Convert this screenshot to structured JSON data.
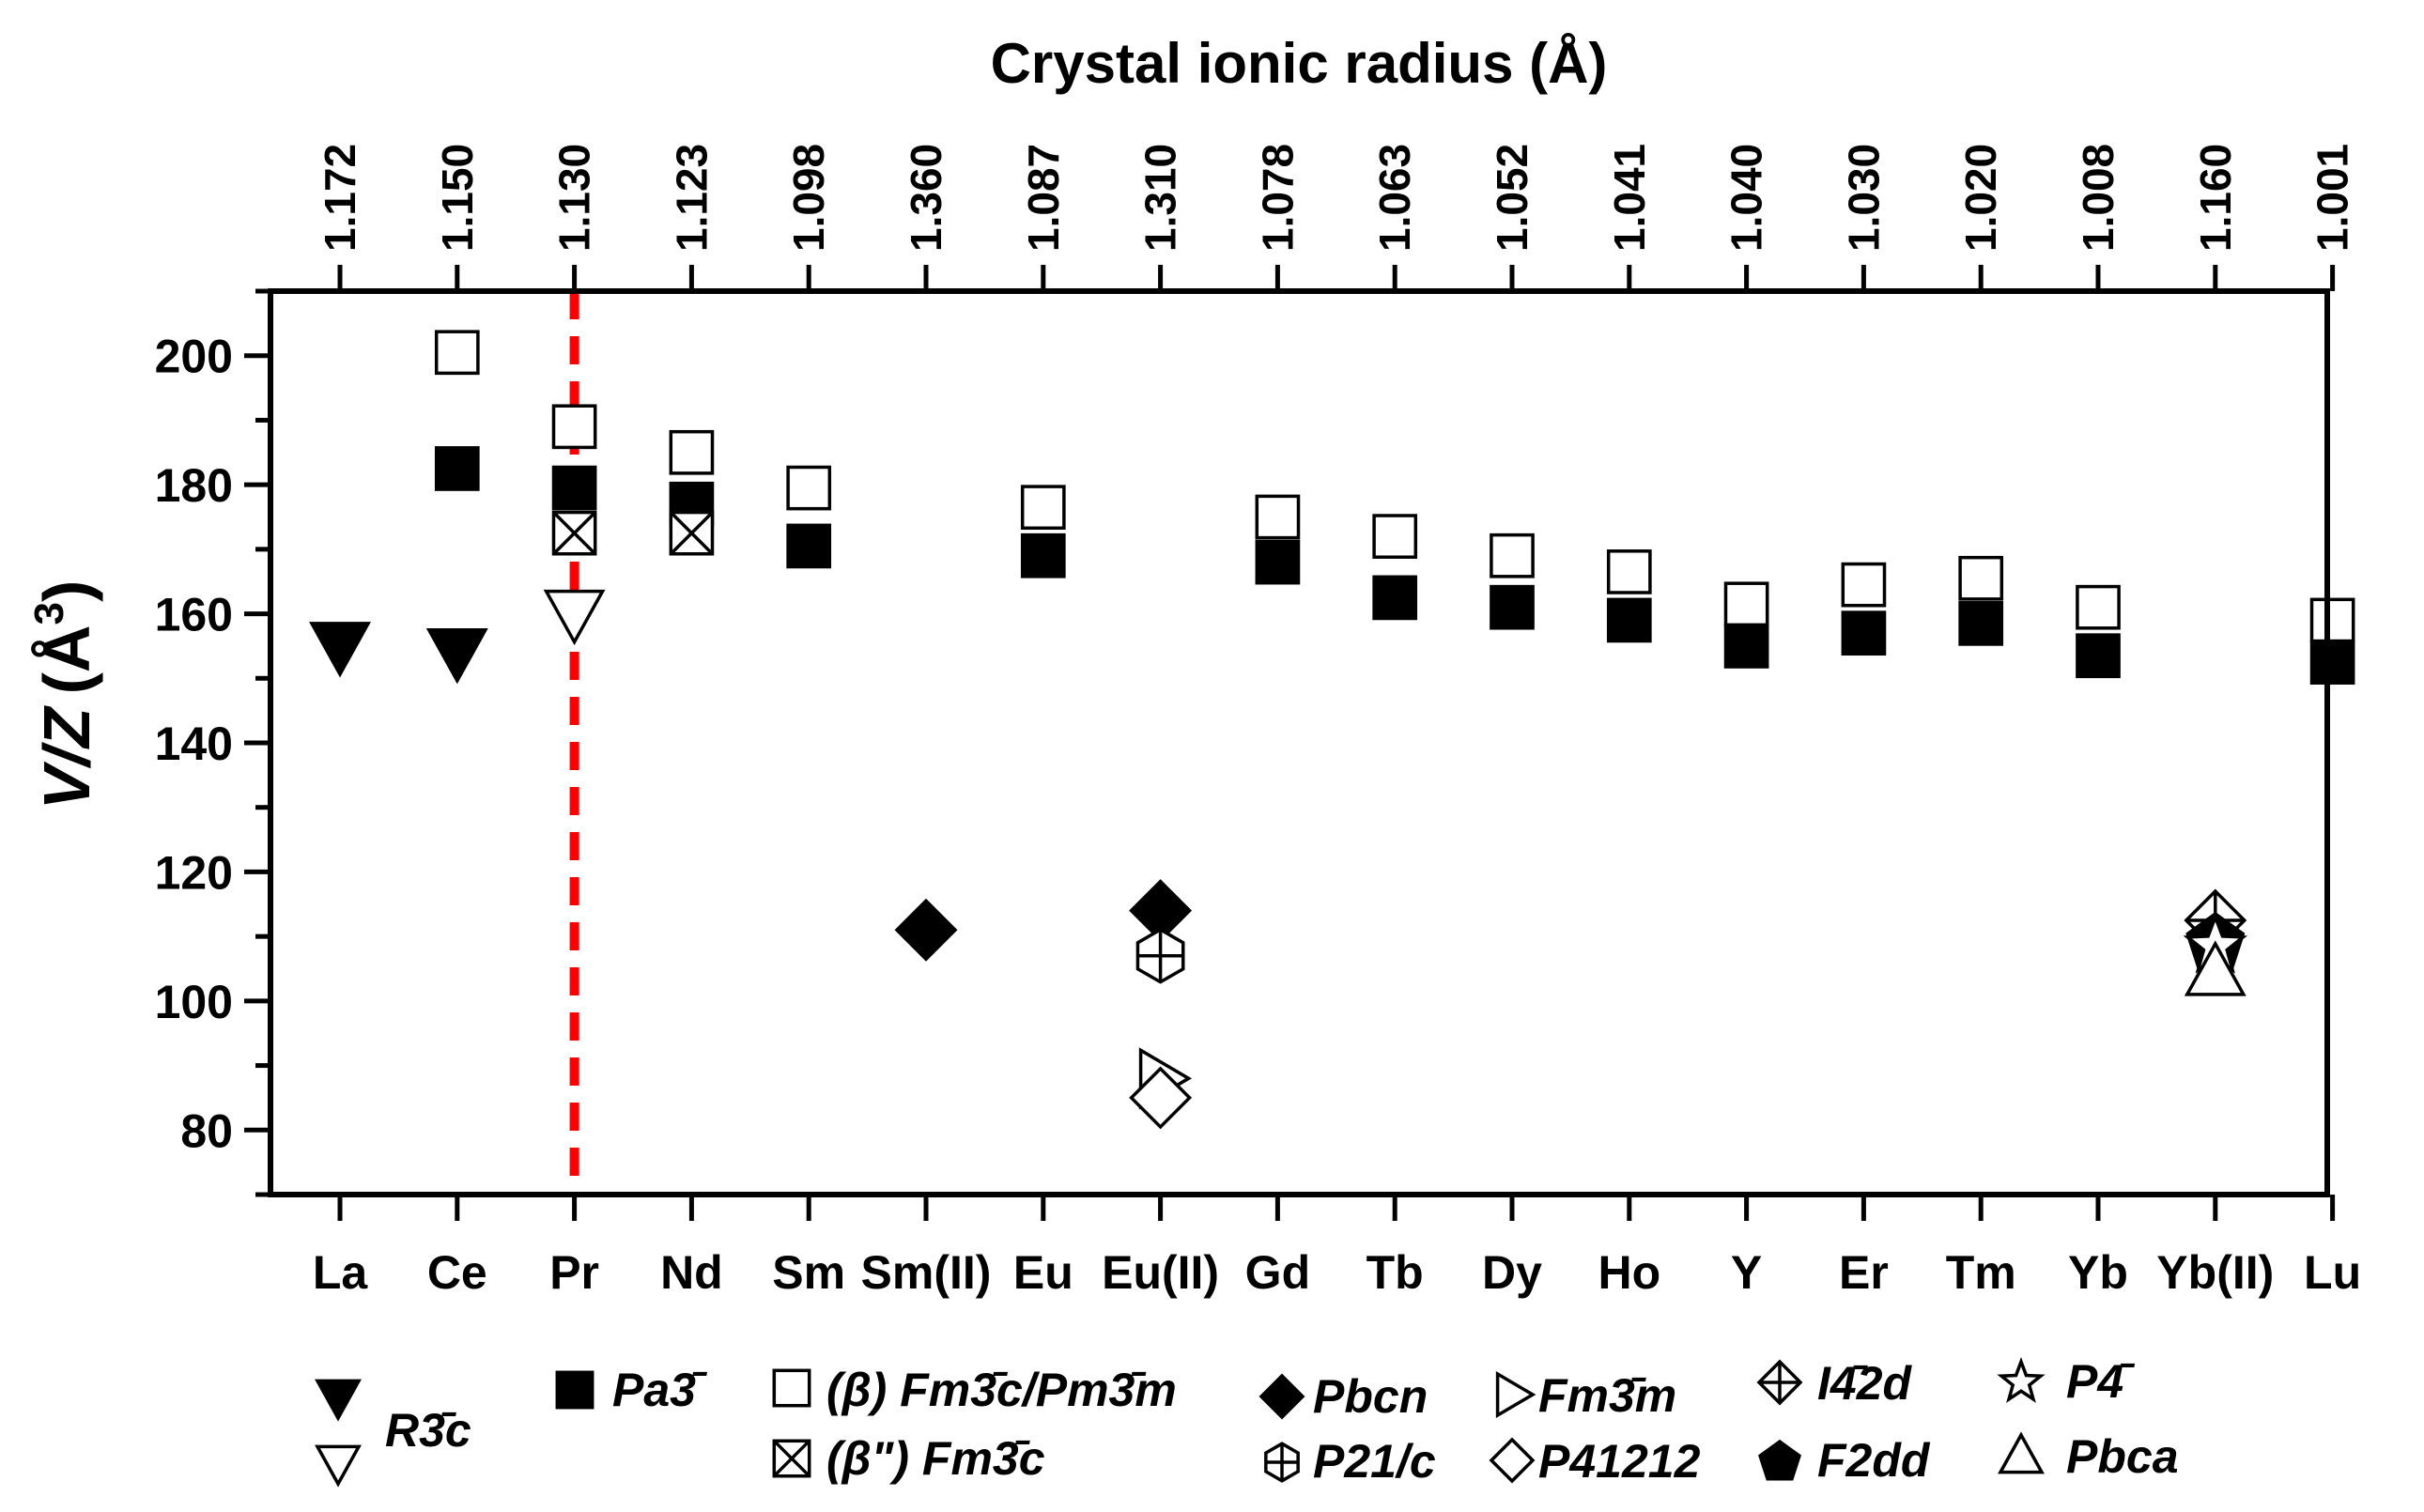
{
  "chart_data": {
    "type": "scatter",
    "top_axis_title": "Crystal ionic radius (Å)",
    "ylabel_prefix": "V/Z",
    "ylabel_unit": "(Å",
    "ylabel_exp": "3",
    "ylabel_close": ")",
    "ylim": [
      70,
      210
    ],
    "yticks": [
      80,
      100,
      120,
      140,
      160,
      180,
      200
    ],
    "categories": [
      "La",
      "Ce",
      "Pr",
      "Nd",
      "Sm",
      "Sm(II)",
      "Eu",
      "Eu(II)",
      "Gd",
      "Tb",
      "Dy",
      "Ho",
      "Y",
      "Er",
      "Tm",
      "Yb",
      "Yb(II)",
      "Lu"
    ],
    "top_labels": [
      "1.172",
      "1.150",
      "1.130",
      "1.123",
      "1.098",
      "1.360",
      "1.087",
      "1.310",
      "1.078",
      "1.063",
      "1.052",
      "1.041",
      "1.040",
      "1.030",
      "1.020",
      "1.008",
      "1.160",
      "1.001"
    ],
    "reference_line_category": "Pr",
    "reference_line_color": "#ff0000",
    "series": [
      {
        "name": "R-3c (filled)",
        "marker": "tri-down-filled",
        "points": [
          [
            "La",
            155
          ],
          [
            "Ce",
            154
          ]
        ]
      },
      {
        "name": "R-3c (open)",
        "marker": "tri-down-open",
        "points": [
          [
            "Pr",
            160
          ]
        ]
      },
      {
        "name": "Pa-3",
        "marker": "square-filled",
        "points": [
          [
            "Ce",
            182.5
          ],
          [
            "Pr",
            179.5
          ],
          [
            "Nd",
            177
          ],
          [
            "Sm",
            170.5
          ],
          [
            "Eu",
            169
          ],
          [
            "Gd",
            168
          ],
          [
            "Tb",
            162.5
          ],
          [
            "Dy",
            161
          ],
          [
            "Ho",
            159
          ],
          [
            "Y",
            155
          ],
          [
            "Er",
            157
          ],
          [
            "Tm",
            158.5
          ],
          [
            "Yb",
            153.5
          ],
          [
            "Lu",
            152.5
          ]
        ]
      },
      {
        "name": "(β) Fm-3c/Pm-3m",
        "marker": "square-open",
        "points": [
          [
            "Ce",
            200.5
          ],
          [
            "Pr",
            189
          ],
          [
            "Nd",
            185
          ],
          [
            "Sm",
            179.5
          ],
          [
            "Eu",
            176.5
          ],
          [
            "Gd",
            175
          ],
          [
            "Tb",
            172
          ],
          [
            "Dy",
            169
          ],
          [
            "Ho",
            166.5
          ],
          [
            "Y",
            161.5
          ],
          [
            "Er",
            164.5
          ],
          [
            "Tm",
            165.5
          ],
          [
            "Yb",
            161
          ],
          [
            "Lu",
            159
          ]
        ]
      },
      {
        "name": "(β'') Fm-3c",
        "marker": "square-x",
        "points": [
          [
            "Pr",
            172.5
          ],
          [
            "Nd",
            172.5
          ]
        ]
      },
      {
        "name": "Pbcn",
        "marker": "diamond-filled",
        "points": [
          [
            "Sm(II)",
            111
          ],
          [
            "Eu(II)",
            114
          ]
        ]
      },
      {
        "name": "P21/c",
        "marker": "circle-plus",
        "points": [
          [
            "Eu(II)",
            107
          ]
        ]
      },
      {
        "name": "Fm-3m",
        "marker": "tri-right-open",
        "points": [
          [
            "Eu(II)",
            88
          ]
        ]
      },
      {
        "name": "P41212",
        "marker": "diamond-open",
        "points": [
          [
            "Eu(II)",
            85
          ]
        ]
      },
      {
        "name": "I-42d",
        "marker": "diamond-plus",
        "points": [
          [
            "Yb(II)",
            112.5
          ]
        ]
      },
      {
        "name": "F2dd",
        "marker": "pentagon-filled",
        "points": [
          [
            "Yb(II)",
            109
          ]
        ]
      },
      {
        "name": "P-4",
        "marker": "star-open",
        "points": [
          [
            "Yb(II)",
            108.5
          ]
        ]
      },
      {
        "name": "Pbca",
        "marker": "tri-up-open",
        "points": [
          [
            "Yb(II)",
            104.5
          ]
        ]
      }
    ],
    "legend": [
      {
        "marker": "tri-down-filled",
        "text": ""
      },
      {
        "marker": "tri-down-open",
        "text": ""
      },
      {
        "marker": "none",
        "text": "R3̄c"
      },
      {
        "marker": "square-filled",
        "text": "Pa3̄"
      },
      {
        "marker": "square-open",
        "text": "(β) Fm3̄c/Pm3̄m"
      },
      {
        "marker": "square-x",
        "text": "(β\") Fm3̄c"
      },
      {
        "marker": "diamond-filled",
        "text": "Pbcn"
      },
      {
        "marker": "circle-plus",
        "text": "P21/c"
      },
      {
        "marker": "tri-right-open",
        "text": "Fm3̄m"
      },
      {
        "marker": "diamond-open",
        "text": "P41212"
      },
      {
        "marker": "diamond-plus",
        "text": "I4̄2d"
      },
      {
        "marker": "pentagon-filled",
        "text": "F2dd"
      },
      {
        "marker": "star-open",
        "text": "P4̄"
      },
      {
        "marker": "tri-up-open",
        "text": "Pbca"
      }
    ]
  }
}
